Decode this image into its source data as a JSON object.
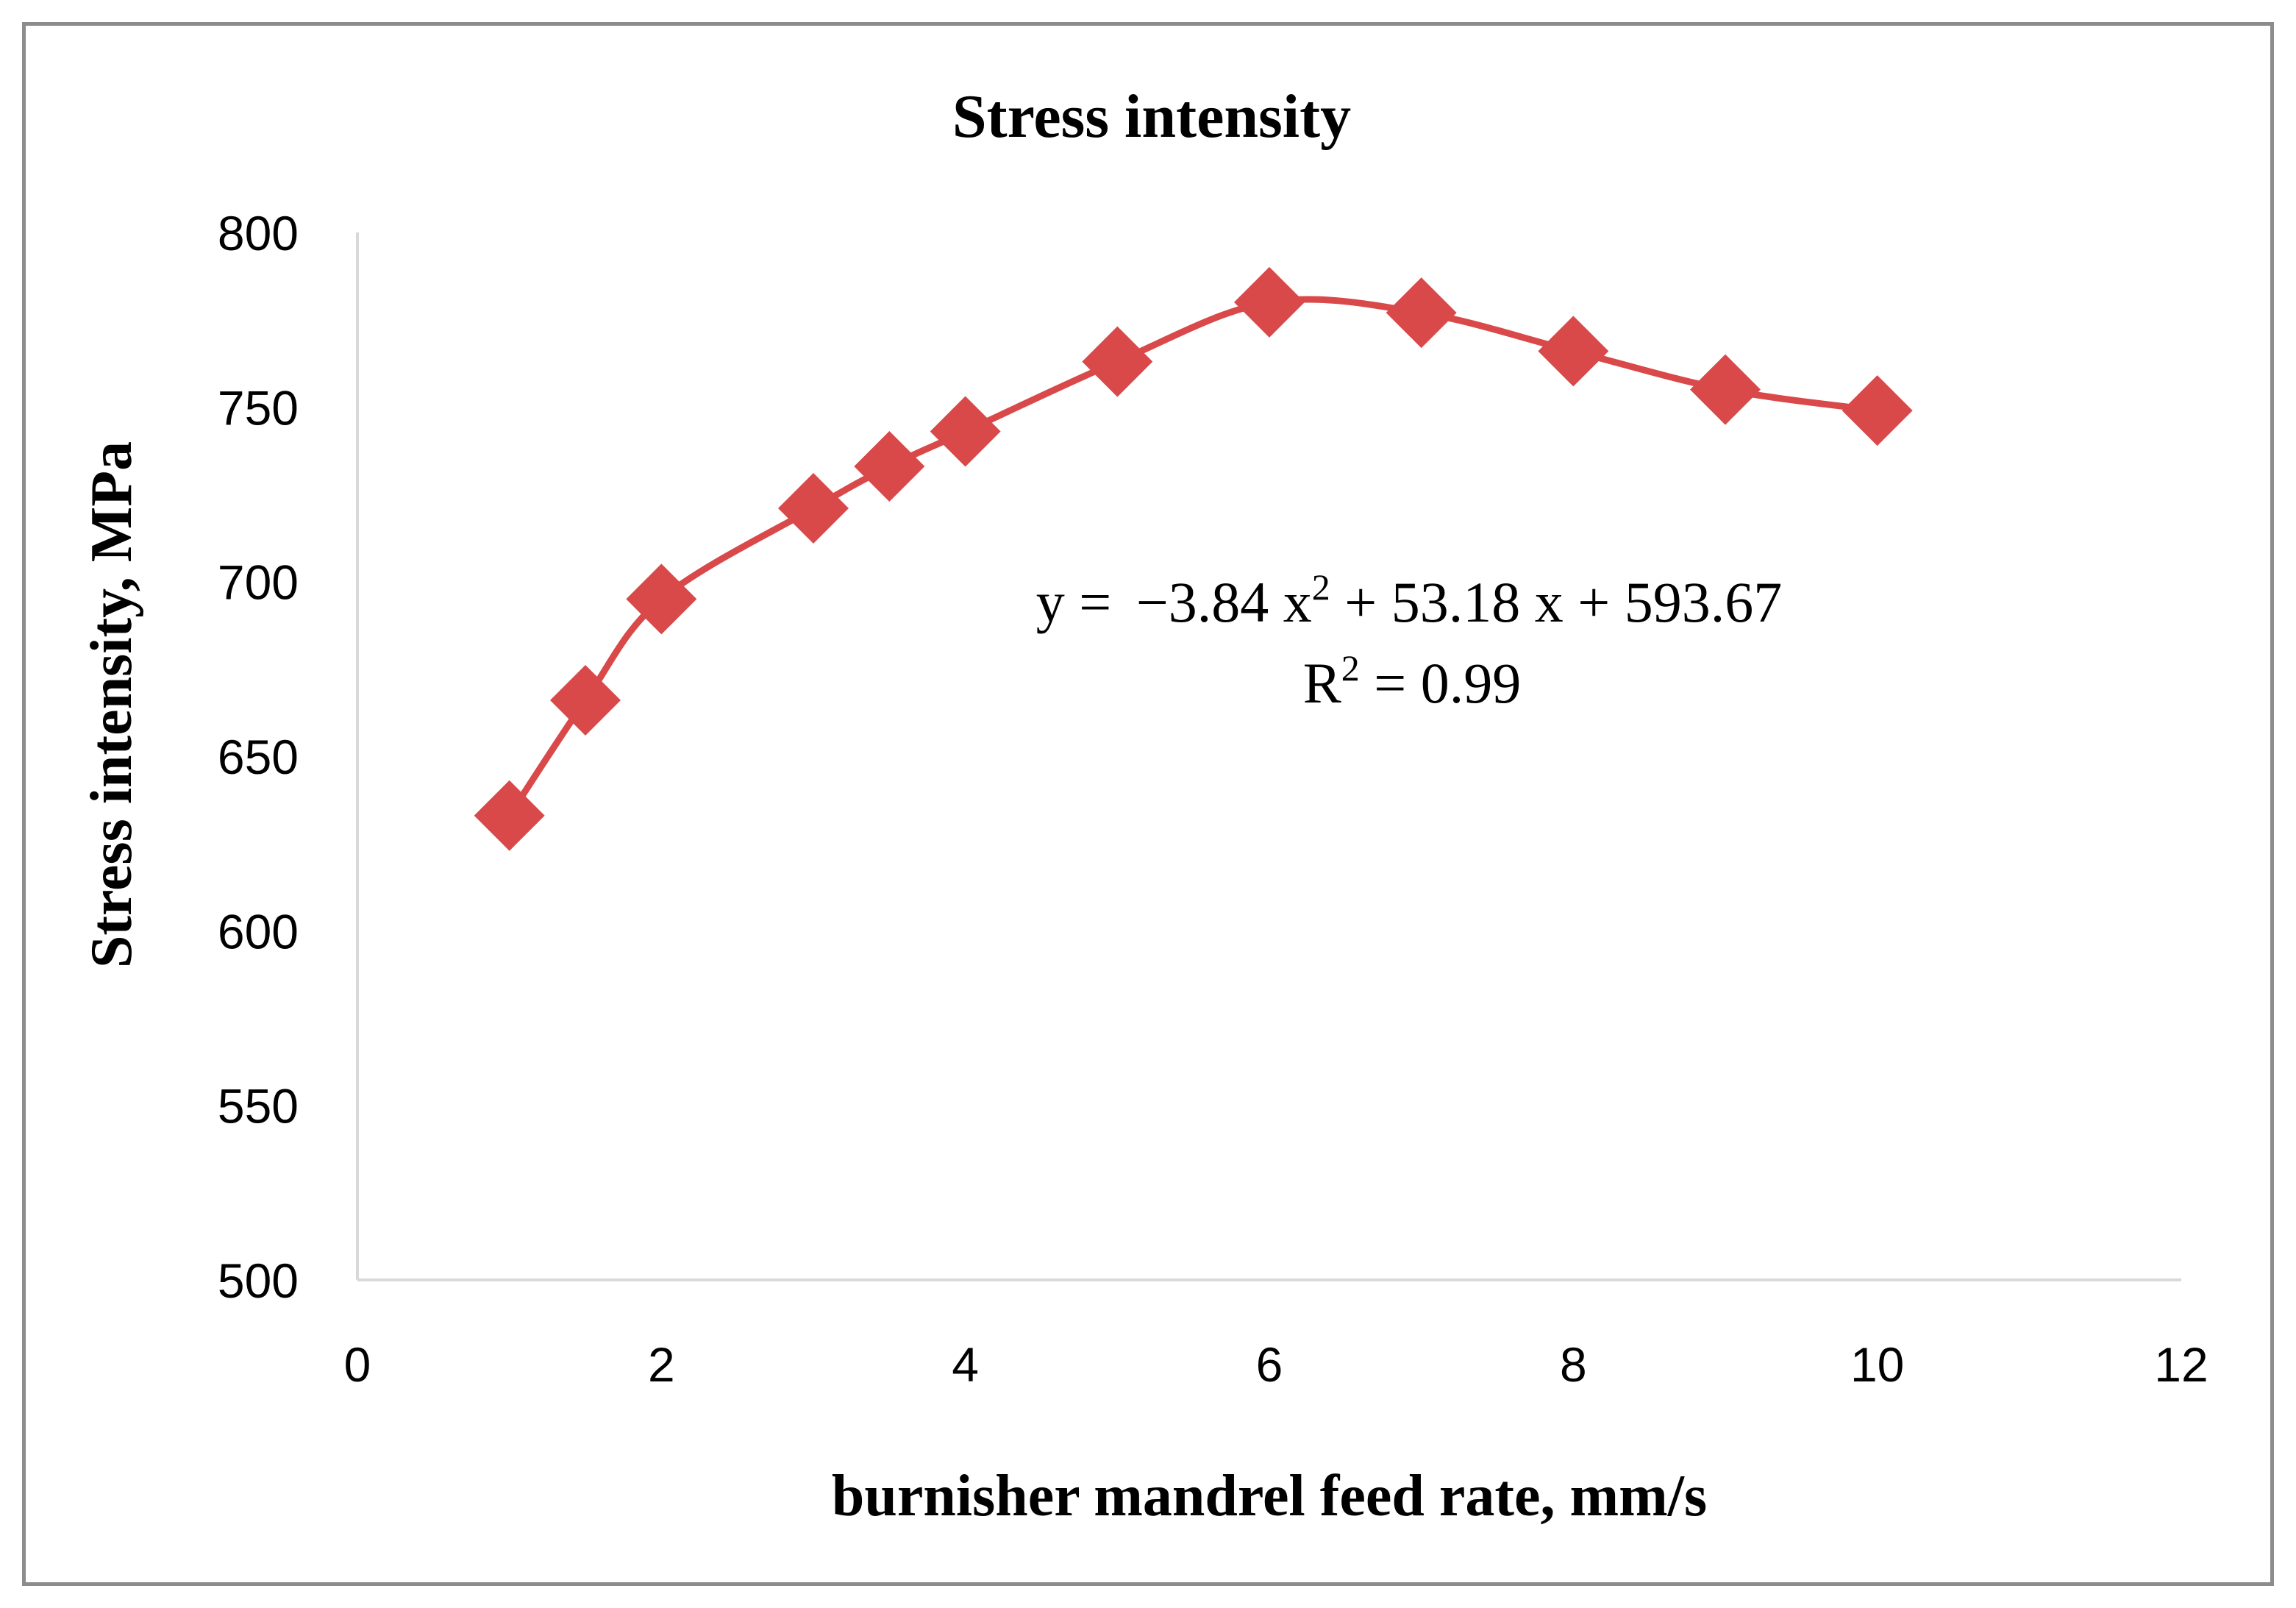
{
  "chart_data": {
    "type": "line",
    "title": "Stress intensity",
    "xlabel": "burnisher mandrel feed rate, mm/s",
    "ylabel": "Stress intensity, MPa",
    "xlim": [
      0,
      12
    ],
    "ylim": [
      500,
      800
    ],
    "xticks": [
      0,
      2,
      4,
      6,
      8,
      10,
      12
    ],
    "yticks": [
      500,
      550,
      600,
      650,
      700,
      750,
      800
    ],
    "grid": false,
    "legend": "none",
    "series": [
      {
        "name": "Stress intensity",
        "color": "#d9494a",
        "marker": "diamond",
        "smooth": true,
        "x": [
          1,
          1.5,
          2,
          3,
          3.5,
          4,
          5,
          6,
          7,
          8,
          9,
          10
        ],
        "y": [
          633,
          666,
          695,
          721,
          733,
          743,
          763,
          780,
          777,
          766,
          755,
          749
        ]
      }
    ],
    "annotations": {
      "equation": {
        "prefix": "y = ",
        "term1": "−3.84 x",
        "exp": "2",
        "rest": " + 53.18 x + 593.67"
      },
      "r_squared": {
        "prefix": "R",
        "exp": "2",
        "rest": " = 0.99"
      }
    }
  }
}
